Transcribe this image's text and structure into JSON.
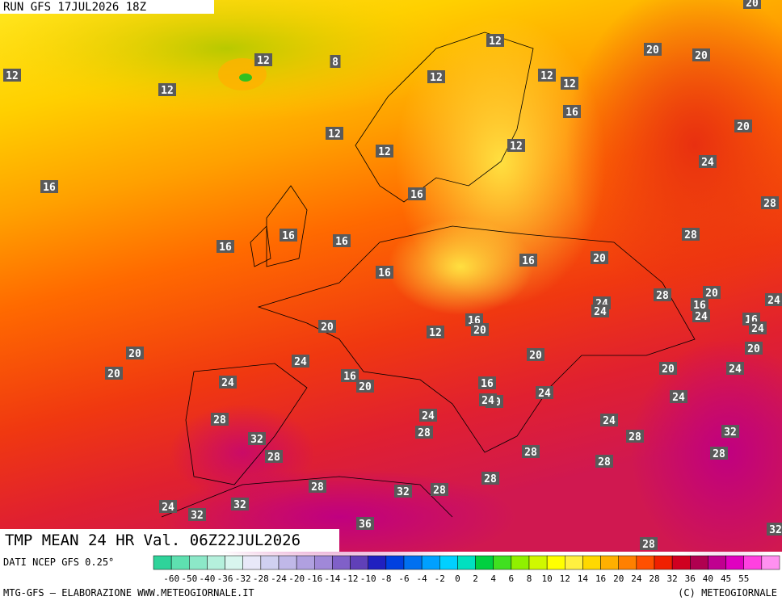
{
  "header": {
    "run": "RUN GFS 17JUL2026 18Z"
  },
  "map": {
    "title": "TMP MEAN 24 HR Val. 06Z22JUL2026",
    "labels": [
      12,
      12,
      12,
      12,
      12,
      12,
      12,
      12,
      12,
      12,
      12,
      8,
      16,
      16,
      16,
      16,
      16,
      16,
      16,
      16,
      16,
      16,
      16,
      16,
      16,
      20,
      20,
      20,
      20,
      20,
      20,
      20,
      20,
      20,
      20,
      20,
      20,
      20,
      20,
      20,
      24,
      24,
      24,
      24,
      24,
      24,
      24,
      24,
      24,
      24,
      24,
      24,
      24,
      24,
      28,
      28,
      28,
      28,
      28,
      28,
      28,
      28,
      28,
      28,
      28,
      28,
      28,
      28,
      32,
      32,
      32,
      32,
      32,
      32,
      36,
      24
    ]
  },
  "legend": {
    "source": "DATI NCEP GFS 0.25°",
    "ticks": [
      -60,
      -50,
      -40,
      -36,
      -32,
      -28,
      -24,
      -20,
      -16,
      -14,
      -12,
      -10,
      -8,
      -6,
      -4,
      -2,
      0,
      2,
      4,
      6,
      8,
      10,
      12,
      14,
      16,
      20,
      24,
      28,
      32,
      36,
      40,
      45,
      55
    ],
    "colors": [
      "#2fd39a",
      "#5ee0b0",
      "#8ce8c8",
      "#b5f0dc",
      "#d8f5ee",
      "#e8e8f8",
      "#d0d0f0",
      "#c0b8e8",
      "#b0a0e0",
      "#a088d8",
      "#8060c8",
      "#6040b8",
      "#2020c0",
      "#0040e0",
      "#0070f0",
      "#00a0ff",
      "#00d0ff",
      "#00e0c0",
      "#00d040",
      "#40e020",
      "#90f000",
      "#d0f800",
      "#ffff00",
      "#fff040",
      "#ffd800",
      "#ffb000",
      "#ff8000",
      "#ff5000",
      "#f02000",
      "#d00020",
      "#b00050",
      "#c00090",
      "#e000c0",
      "#ff40e0",
      "#ff90f0"
    ],
    "credit_left": "MTG-GFS — ELABORAZIONE WWW.METEOGIORNALE.IT",
    "credit_right": "(C) METEOGIORNALE"
  }
}
